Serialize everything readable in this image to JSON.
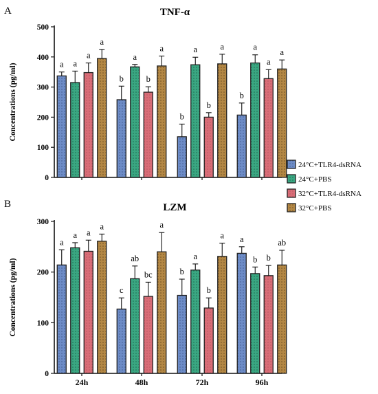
{
  "colors": {
    "blue": "#6d8cc7",
    "green": "#3aa782",
    "red": "#d96d77",
    "brown": "#b38744"
  },
  "legend": [
    {
      "label": "24°C+TLR4-dsRNA",
      "color": "#6d8cc7"
    },
    {
      "label": "24°C+PBS",
      "color": "#3aa782"
    },
    {
      "label": "32°C+TLR4-dsRNA",
      "color": "#d96d77"
    },
    {
      "label": "32°C+PBS",
      "color": "#b38744"
    }
  ],
  "chart_data": [
    {
      "type": "bar",
      "panel": "A",
      "title": "TNF-α",
      "ylabel": "Concentrations (pg/ml)",
      "ylim": [
        0,
        500
      ],
      "yticks": [
        0,
        100,
        200,
        300,
        400,
        500
      ],
      "categories": [
        "24h",
        "48h",
        "72h",
        "96h"
      ],
      "show_category_labels": false,
      "series": [
        {
          "name": "24°C+TLR4-dsRNA",
          "values": [
            337,
            258,
            135,
            207
          ],
          "errors": [
            13,
            45,
            42,
            40
          ],
          "letters": [
            "a",
            "b",
            "b",
            "b"
          ]
        },
        {
          "name": "24°C+PBS",
          "values": [
            315,
            367,
            374,
            380
          ],
          "errors": [
            38,
            8,
            25,
            27
          ],
          "letters": [
            "a",
            "a",
            "a",
            "a"
          ]
        },
        {
          "name": "32°C+TLR4-dsRNA",
          "values": [
            348,
            283,
            200,
            328
          ],
          "errors": [
            32,
            18,
            15,
            30
          ],
          "letters": [
            "a",
            "b",
            "b",
            "a"
          ]
        },
        {
          "name": "32°C+PBS",
          "values": [
            395,
            370,
            377,
            360
          ],
          "errors": [
            30,
            33,
            32,
            30
          ],
          "letters": [
            "a",
            "a",
            "a",
            "a"
          ]
        }
      ]
    },
    {
      "type": "bar",
      "panel": "B",
      "title": "LZM",
      "ylabel": "Concentrations (pg/ml)",
      "ylim": [
        0,
        300
      ],
      "yticks": [
        0,
        100,
        200,
        300
      ],
      "categories": [
        "24h",
        "48h",
        "72h",
        "96h"
      ],
      "show_category_labels": true,
      "series": [
        {
          "name": "24°C+TLR4-dsRNA",
          "values": [
            214,
            127,
            154,
            237
          ],
          "errors": [
            30,
            22,
            32,
            13
          ],
          "letters": [
            "a",
            "c",
            "b",
            "a"
          ]
        },
        {
          "name": "24°C+PBS",
          "values": [
            248,
            187,
            204,
            197
          ],
          "errors": [
            10,
            25,
            12,
            13
          ],
          "letters": [
            "a",
            "ab",
            "a",
            "b"
          ]
        },
        {
          "name": "32°C+TLR4-dsRNA",
          "values": [
            241,
            152,
            129,
            193
          ],
          "errors": [
            22,
            28,
            20,
            20
          ],
          "letters": [
            "a",
            "bc",
            "b",
            "b"
          ]
        },
        {
          "name": "32°C+PBS",
          "values": [
            261,
            240,
            231,
            214
          ],
          "errors": [
            14,
            38,
            26,
            29
          ],
          "letters": [
            "a",
            "a",
            "a",
            "ab"
          ]
        }
      ]
    }
  ]
}
